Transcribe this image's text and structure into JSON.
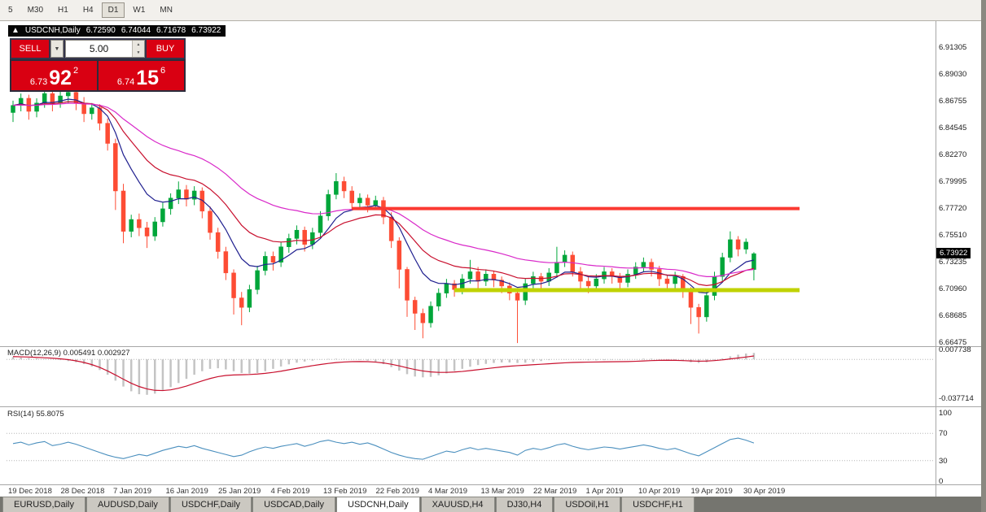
{
  "toolbar": {
    "timeframes": [
      "5",
      "M30",
      "H1",
      "H4",
      "D1",
      "W1",
      "MN"
    ],
    "active": "D1"
  },
  "chart_header": {
    "arrow": "▲",
    "title": "USDCNH,Daily",
    "open": "6.72590",
    "high": "6.74044",
    "low": "6.71678",
    "close": "6.73922"
  },
  "trade_panel": {
    "sell": "SELL",
    "buy": "BUY",
    "volume": "5.00",
    "dropdown_icon": "▼",
    "spin_up": "▲",
    "spin_down": "▼",
    "sell_price": {
      "small": "6.73",
      "big": "92",
      "sup": "2"
    },
    "buy_price": {
      "small": "6.74",
      "big": "15",
      "sup": "6"
    }
  },
  "price_axis": {
    "labels": [
      "6.91305",
      "6.89030",
      "6.86755",
      "6.84545",
      "6.82270",
      "6.79995",
      "6.77720",
      "6.75510",
      "6.73235",
      "6.70960",
      "6.68685",
      "6.66475"
    ],
    "current": "6.73922"
  },
  "indicators": {
    "macd": {
      "title": "MACD(12,26,9) 0.005491 0.002927",
      "axis": [
        "0.007738",
        "-0.037714"
      ]
    },
    "rsi": {
      "title": "RSI(14) 55.8075",
      "axis": [
        "100",
        "70",
        "30",
        "0"
      ]
    }
  },
  "time_axis": [
    "19 Dec 2018",
    "28 Dec 2018",
    "7 Jan 2019",
    "16 Jan 2019",
    "25 Jan 2019",
    "4 Feb 2019",
    "13 Feb 2019",
    "22 Feb 2019",
    "4 Mar 2019",
    "13 Mar 2019",
    "22 Mar 2019",
    "1 Apr 2019",
    "10 Apr 2019",
    "19 Apr 2019",
    "30 Apr 2019"
  ],
  "tabs": [
    "EURUSD,Daily",
    "AUDUSD,Daily",
    "USDCHF,Daily",
    "USDCAD,Daily",
    "USDCNH,Daily",
    "XAUUSD,H4",
    "DJ30,H4",
    "USDOil,H1",
    "USDCHF,H1"
  ],
  "active_tab": "USDCNH,Daily",
  "colors": {
    "up": "#00a63a",
    "down": "#fd4c34",
    "ma_fast": "#20208f",
    "ma_mid": "#c8102e",
    "ma_slow": "#d929c9",
    "macd_hist": "#c4c4c4",
    "macd_signal": "#c8102e",
    "rsi_line": "#4a8fbe",
    "resistance": "#fb3a32",
    "support": "#c0d200",
    "trade_red": "#d90012"
  },
  "chart_data": [
    {
      "type": "candlestick",
      "symbol": "USDCNH,Daily",
      "timeframe": "D1",
      "ylim": [
        6.66475,
        6.91305
      ],
      "last_price": 6.73922,
      "hlines": [
        {
          "price": 6.7772,
          "color": "#fb3a32",
          "width": 4,
          "from_index": 43
        },
        {
          "price": 6.7085,
          "color": "#c0d200",
          "width": 5,
          "from_index": 56
        }
      ],
      "moving_averages": [
        {
          "period": 8,
          "color": "#20208f"
        },
        {
          "period": 17,
          "color": "#c8102e"
        },
        {
          "period": 34,
          "color": "#d929c9"
        }
      ],
      "ohlc": [
        [
          6.858,
          6.868,
          6.85,
          6.864
        ],
        [
          6.864,
          6.874,
          6.859,
          6.87
        ],
        [
          6.87,
          6.873,
          6.852,
          6.859
        ],
        [
          6.859,
          6.87,
          6.854,
          6.866
        ],
        [
          6.866,
          6.878,
          6.862,
          6.874
        ],
        [
          6.874,
          6.878,
          6.859,
          6.866
        ],
        [
          6.866,
          6.876,
          6.862,
          6.872
        ],
        [
          6.872,
          6.878,
          6.866,
          6.875
        ],
        [
          6.875,
          6.884,
          6.86,
          6.866
        ],
        [
          6.866,
          6.871,
          6.85,
          6.857
        ],
        [
          6.857,
          6.866,
          6.852,
          6.862
        ],
        [
          6.862,
          6.865,
          6.843,
          6.849
        ],
        [
          6.849,
          6.853,
          6.826,
          6.832
        ],
        [
          6.832,
          6.836,
          6.776,
          6.792
        ],
        [
          6.792,
          6.798,
          6.748,
          6.758
        ],
        [
          6.758,
          6.772,
          6.753,
          6.768
        ],
        [
          6.768,
          6.773,
          6.754,
          6.761
        ],
        [
          6.761,
          6.766,
          6.744,
          6.754
        ],
        [
          6.754,
          6.77,
          6.75,
          6.766
        ],
        [
          6.766,
          6.782,
          6.762,
          6.777
        ],
        [
          6.777,
          6.79,
          6.772,
          6.786
        ],
        [
          6.786,
          6.8,
          6.781,
          6.793
        ],
        [
          6.793,
          6.797,
          6.779,
          6.785
        ],
        [
          6.785,
          6.796,
          6.78,
          6.792
        ],
        [
          6.792,
          6.795,
          6.769,
          6.775
        ],
        [
          6.775,
          6.779,
          6.751,
          6.757
        ],
        [
          6.757,
          6.761,
          6.735,
          6.741
        ],
        [
          6.741,
          6.745,
          6.717,
          6.723
        ],
        [
          6.723,
          6.726,
          6.688,
          6.702
        ],
        [
          6.702,
          6.707,
          6.679,
          6.694
        ],
        [
          6.694,
          6.713,
          6.69,
          6.709
        ],
        [
          6.709,
          6.729,
          6.705,
          6.725
        ],
        [
          6.725,
          6.741,
          6.721,
          6.737
        ],
        [
          6.737,
          6.741,
          6.725,
          6.732
        ],
        [
          6.732,
          6.749,
          6.728,
          6.745
        ],
        [
          6.745,
          6.756,
          6.74,
          6.752
        ],
        [
          6.752,
          6.763,
          6.747,
          6.759
        ],
        [
          6.759,
          6.762,
          6.741,
          6.747
        ],
        [
          6.747,
          6.761,
          6.743,
          6.757
        ],
        [
          6.757,
          6.775,
          6.753,
          6.771
        ],
        [
          6.771,
          6.793,
          6.767,
          6.789
        ],
        [
          6.789,
          6.807,
          6.785,
          6.8
        ],
        [
          6.8,
          6.804,
          6.786,
          6.792
        ],
        [
          6.792,
          6.796,
          6.776,
          6.782
        ],
        [
          6.782,
          6.79,
          6.777,
          6.786
        ],
        [
          6.786,
          6.789,
          6.774,
          6.78
        ],
        [
          6.78,
          6.788,
          6.776,
          6.784
        ],
        [
          6.784,
          6.787,
          6.764,
          6.77
        ],
        [
          6.77,
          6.774,
          6.744,
          6.75
        ],
        [
          6.75,
          6.753,
          6.71,
          6.726
        ],
        [
          6.726,
          6.728,
          6.686,
          6.7
        ],
        [
          6.7,
          6.703,
          6.675,
          6.689
        ],
        [
          6.689,
          6.693,
          6.668,
          6.681
        ],
        [
          6.681,
          6.699,
          6.677,
          6.695
        ],
        [
          6.695,
          6.71,
          6.691,
          6.706
        ],
        [
          6.706,
          6.718,
          6.702,
          6.714
        ],
        [
          6.714,
          6.717,
          6.703,
          6.709
        ],
        [
          6.709,
          6.722,
          6.705,
          6.718
        ],
        [
          6.718,
          6.734,
          6.714,
          6.724
        ],
        [
          6.724,
          6.728,
          6.71,
          6.716
        ],
        [
          6.716,
          6.726,
          6.712,
          6.722
        ],
        [
          6.722,
          6.725,
          6.711,
          6.717
        ],
        [
          6.717,
          6.72,
          6.706,
          6.712
        ],
        [
          6.712,
          6.715,
          6.7,
          6.706
        ],
        [
          6.706,
          6.71,
          6.664,
          6.7
        ],
        [
          6.7,
          6.718,
          6.696,
          6.714
        ],
        [
          6.714,
          6.724,
          6.71,
          6.72
        ],
        [
          6.72,
          6.723,
          6.71,
          6.716
        ],
        [
          6.716,
          6.727,
          6.712,
          6.723
        ],
        [
          6.723,
          6.745,
          6.719,
          6.732
        ],
        [
          6.732,
          6.742,
          6.728,
          6.738
        ],
        [
          6.738,
          6.741,
          6.72,
          6.724
        ],
        [
          6.724,
          6.728,
          6.71,
          6.716
        ],
        [
          6.716,
          6.72,
          6.706,
          6.712
        ],
        [
          6.712,
          6.722,
          6.708,
          6.718
        ],
        [
          6.718,
          6.728,
          6.714,
          6.724
        ],
        [
          6.724,
          6.727,
          6.714,
          6.72
        ],
        [
          6.72,
          6.723,
          6.709,
          6.715
        ],
        [
          6.715,
          6.726,
          6.711,
          6.722
        ],
        [
          6.722,
          6.732,
          6.718,
          6.728
        ],
        [
          6.728,
          6.736,
          6.724,
          6.732
        ],
        [
          6.732,
          6.735,
          6.72,
          6.726
        ],
        [
          6.726,
          6.729,
          6.712,
          6.718
        ],
        [
          6.718,
          6.721,
          6.708,
          6.714
        ],
        [
          6.714,
          6.724,
          6.71,
          6.72
        ],
        [
          6.72,
          6.722,
          6.702,
          6.708
        ],
        [
          6.708,
          6.711,
          6.68,
          6.694
        ],
        [
          6.694,
          6.697,
          6.672,
          6.686
        ],
        [
          6.686,
          6.708,
          6.682,
          6.704
        ],
        [
          6.704,
          6.724,
          6.7,
          6.72
        ],
        [
          6.72,
          6.74,
          6.716,
          6.736
        ],
        [
          6.736,
          6.758,
          6.732,
          6.751
        ],
        [
          6.751,
          6.754,
          6.737,
          6.743
        ],
        [
          6.743,
          6.752,
          6.739,
          6.749
        ],
        [
          6.7259,
          6.74044,
          6.71678,
          6.73922
        ]
      ]
    },
    {
      "type": "bar",
      "name": "MACD(12,26,9)",
      "main_value": 0.005491,
      "signal_value": 0.002927,
      "ylim": [
        -0.037714,
        0.007738
      ],
      "values": [
        0.002,
        0.0016,
        0.0012,
        0.0008,
        0.0004,
        0.0,
        -0.0006,
        -0.0014,
        -0.0024,
        -0.004,
        -0.006,
        -0.009,
        -0.013,
        -0.018,
        -0.023,
        -0.027,
        -0.0295,
        -0.03,
        -0.029,
        -0.0265,
        -0.0235,
        -0.02,
        -0.0165,
        -0.013,
        -0.01,
        -0.008,
        -0.0075,
        -0.0085,
        -0.01,
        -0.0115,
        -0.012,
        -0.0115,
        -0.01,
        -0.008,
        -0.006,
        -0.0042,
        -0.0028,
        -0.0018,
        -0.001,
        -0.0002,
        0.0004,
        0.0006,
        0.0004,
        0.0,
        -0.0004,
        -0.001,
        -0.0022,
        -0.004,
        -0.0065,
        -0.0095,
        -0.0125,
        -0.0145,
        -0.0152,
        -0.0148,
        -0.0135,
        -0.0118,
        -0.0098,
        -0.008,
        -0.0062,
        -0.0048,
        -0.0038,
        -0.003,
        -0.0026,
        -0.0026,
        -0.003,
        -0.0028,
        -0.0022,
        -0.0014,
        -0.0006,
        0.0,
        0.0002,
        0.0,
        -0.0004,
        -0.0008,
        -0.0008,
        -0.0006,
        -0.0004,
        -0.0004,
        -0.0002,
        0.0002,
        0.0006,
        0.0006,
        0.0002,
        -0.0002,
        -0.0006,
        -0.0014,
        -0.0024,
        -0.003,
        -0.0024,
        -0.001,
        0.0008,
        0.0026,
        0.004,
        0.005,
        0.0055
      ],
      "signal": [
        0.0024,
        0.0022,
        0.002,
        0.0017,
        0.0014,
        0.001,
        0.0005,
        -0.0002,
        -0.0012,
        -0.0026,
        -0.0044,
        -0.0068,
        -0.0098,
        -0.0132,
        -0.0168,
        -0.0202,
        -0.023,
        -0.025,
        -0.0262,
        -0.0264,
        -0.0258,
        -0.0244,
        -0.0226,
        -0.0204,
        -0.0182,
        -0.0162,
        -0.0146,
        -0.0136,
        -0.0132,
        -0.013,
        -0.0128,
        -0.0124,
        -0.0118,
        -0.011,
        -0.01,
        -0.0088,
        -0.0076,
        -0.0064,
        -0.0053,
        -0.0043,
        -0.0034,
        -0.0027,
        -0.0022,
        -0.0019,
        -0.0018,
        -0.0019,
        -0.0023,
        -0.003,
        -0.0041,
        -0.0055,
        -0.0071,
        -0.0086,
        -0.0098,
        -0.0106,
        -0.011,
        -0.011,
        -0.0107,
        -0.0102,
        -0.0095,
        -0.0087,
        -0.0079,
        -0.0071,
        -0.0064,
        -0.0058,
        -0.0053,
        -0.0049,
        -0.0045,
        -0.0041,
        -0.0037,
        -0.0033,
        -0.0029,
        -0.0026,
        -0.0024,
        -0.0023,
        -0.0022,
        -0.0021,
        -0.002,
        -0.0019,
        -0.0018,
        -0.0016,
        -0.0013,
        -0.001,
        -0.0008,
        -0.0007,
        -0.0008,
        -0.001,
        -0.0013,
        -0.0015,
        -0.0014,
        -0.001,
        -0.0004,
        0.0004,
        0.0012,
        0.002,
        0.0029
      ]
    },
    {
      "type": "line",
      "name": "RSI(14)",
      "value": 55.8075,
      "ylim": [
        0,
        100
      ],
      "levels": [
        70,
        30
      ],
      "values": [
        55,
        57,
        53,
        56,
        58,
        52,
        54,
        57,
        54,
        50,
        46,
        42,
        38,
        35,
        33,
        36,
        39,
        37,
        41,
        45,
        48,
        51,
        49,
        52,
        48,
        45,
        42,
        39,
        36,
        38,
        43,
        47,
        50,
        48,
        51,
        53,
        55,
        51,
        54,
        58,
        60,
        57,
        55,
        57,
        54,
        56,
        52,
        47,
        42,
        38,
        35,
        33,
        32,
        36,
        40,
        44,
        42,
        46,
        49,
        46,
        48,
        46,
        44,
        42,
        38,
        45,
        48,
        46,
        49,
        53,
        55,
        51,
        48,
        46,
        48,
        50,
        49,
        47,
        49,
        51,
        53,
        51,
        48,
        46,
        48,
        44,
        40,
        37,
        43,
        49,
        55,
        61,
        63,
        60,
        55.8
      ]
    }
  ]
}
